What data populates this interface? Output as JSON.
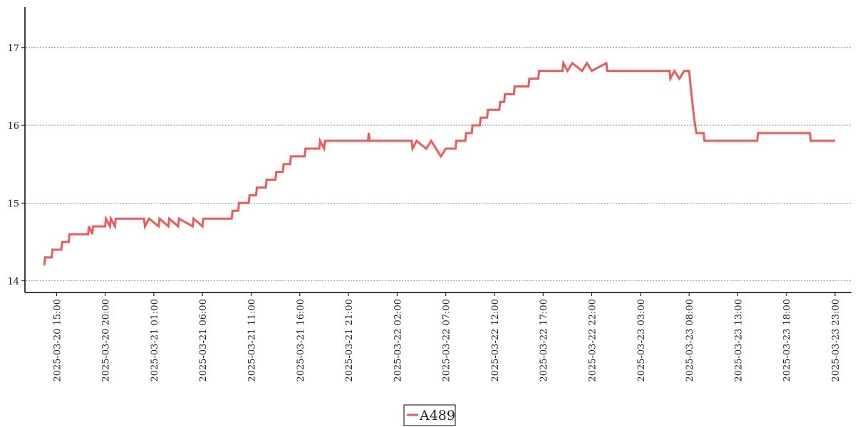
{
  "chart_data": {
    "type": "line",
    "x": [
      "2025-03-20 13:45",
      "2025-03-20 13:50",
      "2025-03-20 14:30",
      "2025-03-20 14:35",
      "2025-03-20 15:30",
      "2025-03-20 15:35",
      "2025-03-20 16:15",
      "2025-03-20 16:20",
      "2025-03-20 18:15",
      "2025-03-20 18:20",
      "2025-03-20 18:40",
      "2025-03-20 18:45",
      "2025-03-20 20:00",
      "2025-03-20 20:05",
      "2025-03-20 20:30",
      "2025-03-20 20:35",
      "2025-03-20 21:00",
      "2025-03-20 21:05",
      "2025-03-21 00:00",
      "2025-03-21 00:05",
      "2025-03-21 00:30",
      "2025-03-21 01:30",
      "2025-03-21 01:35",
      "2025-03-21 02:30",
      "2025-03-21 02:35",
      "2025-03-21 03:30",
      "2025-03-21 03:35",
      "2025-03-21 05:00",
      "2025-03-21 05:05",
      "2025-03-21 06:00",
      "2025-03-21 06:05",
      "2025-03-21 09:00",
      "2025-03-21 09:05",
      "2025-03-21 09:40",
      "2025-03-21 09:45",
      "2025-03-21 10:45",
      "2025-03-21 10:50",
      "2025-03-21 11:30",
      "2025-03-21 11:35",
      "2025-03-21 12:30",
      "2025-03-21 12:35",
      "2025-03-21 13:30",
      "2025-03-21 13:35",
      "2025-03-21 14:15",
      "2025-03-21 14:20",
      "2025-03-21 15:00",
      "2025-03-21 15:05",
      "2025-03-21 16:30",
      "2025-03-21 16:35",
      "2025-03-21 18:00",
      "2025-03-21 18:05",
      "2025-03-21 18:30",
      "2025-03-21 18:35",
      "2025-03-21 23:00",
      "2025-03-21 23:05",
      "2025-03-21 23:10",
      "2025-03-22 03:30",
      "2025-03-22 03:35",
      "2025-03-22 04:00",
      "2025-03-22 05:00",
      "2025-03-22 05:30",
      "2025-03-22 06:30",
      "2025-03-22 07:00",
      "2025-03-22 08:00",
      "2025-03-22 08:05",
      "2025-03-22 09:00",
      "2025-03-22 09:05",
      "2025-03-22 09:40",
      "2025-03-22 09:45",
      "2025-03-22 10:30",
      "2025-03-22 10:35",
      "2025-03-22 11:15",
      "2025-03-22 11:20",
      "2025-03-22 12:30",
      "2025-03-22 12:35",
      "2025-03-22 13:00",
      "2025-03-22 13:05",
      "2025-03-22 14:00",
      "2025-03-22 14:05",
      "2025-03-22 15:30",
      "2025-03-22 15:35",
      "2025-03-22 16:30",
      "2025-03-22 16:35",
      "2025-03-22 19:00",
      "2025-03-22 19:05",
      "2025-03-22 19:30",
      "2025-03-22 20:00",
      "2025-03-22 21:00",
      "2025-03-22 21:30",
      "2025-03-22 22:00",
      "2025-03-22 23:30",
      "2025-03-22 23:35",
      "2025-03-23 06:00",
      "2025-03-23 06:05",
      "2025-03-23 06:30",
      "2025-03-23 07:00",
      "2025-03-23 07:30",
      "2025-03-23 08:00",
      "2025-03-23 08:15",
      "2025-03-23 08:30",
      "2025-03-23 08:45",
      "2025-03-23 09:30",
      "2025-03-23 09:35",
      "2025-03-23 15:00",
      "2025-03-23 15:05",
      "2025-03-23 20:25",
      "2025-03-23 20:30",
      "2025-03-23 23:00"
    ],
    "series": [
      {
        "name": "A489",
        "color": "#f05a5a",
        "values": [
          14.2,
          14.3,
          14.3,
          14.4,
          14.4,
          14.5,
          14.5,
          14.6,
          14.6,
          14.7,
          14.6,
          14.7,
          14.7,
          14.8,
          14.7,
          14.8,
          14.7,
          14.8,
          14.8,
          14.7,
          14.8,
          14.7,
          14.8,
          14.7,
          14.8,
          14.7,
          14.8,
          14.7,
          14.8,
          14.7,
          14.8,
          14.8,
          14.9,
          14.9,
          15.0,
          15.0,
          15.1,
          15.1,
          15.2,
          15.2,
          15.3,
          15.3,
          15.4,
          15.4,
          15.5,
          15.5,
          15.6,
          15.6,
          15.7,
          15.7,
          15.8,
          15.7,
          15.8,
          15.8,
          15.9,
          15.8,
          15.8,
          15.7,
          15.8,
          15.7,
          15.8,
          15.6,
          15.7,
          15.7,
          15.8,
          15.8,
          15.9,
          15.9,
          16.0,
          16.0,
          16.1,
          16.1,
          16.2,
          16.2,
          16.3,
          16.3,
          16.4,
          16.4,
          16.5,
          16.5,
          16.6,
          16.6,
          16.7,
          16.7,
          16.8,
          16.7,
          16.8,
          16.7,
          16.8,
          16.7,
          16.8,
          16.7,
          16.7,
          16.6,
          16.7,
          16.6,
          16.7,
          16.7,
          16.4,
          16.1,
          15.9,
          15.9,
          15.8,
          15.8,
          15.9,
          15.9,
          15.8,
          15.8
        ]
      }
    ],
    "xlim": [
      "2025-03-20 13:00",
      "2025-03-23 23:00"
    ],
    "xticks": [
      "2025-03-20 15:00",
      "2025-03-20 20:00",
      "2025-03-21 01:00",
      "2025-03-21 06:00",
      "2025-03-21 11:00",
      "2025-03-21 16:00",
      "2025-03-21 21:00",
      "2025-03-22 02:00",
      "2025-03-22 07:00",
      "2025-03-22 12:00",
      "2025-03-22 17:00",
      "2025-03-22 22:00",
      "2025-03-23 03:00",
      "2025-03-23 08:00",
      "2025-03-23 13:00",
      "2025-03-23 18:00",
      "2025-03-23 23:00"
    ],
    "ylim": [
      13.85,
      17.52
    ],
    "yticks": [
      14,
      15,
      16,
      17
    ],
    "grid": true,
    "legend": "bottom"
  }
}
